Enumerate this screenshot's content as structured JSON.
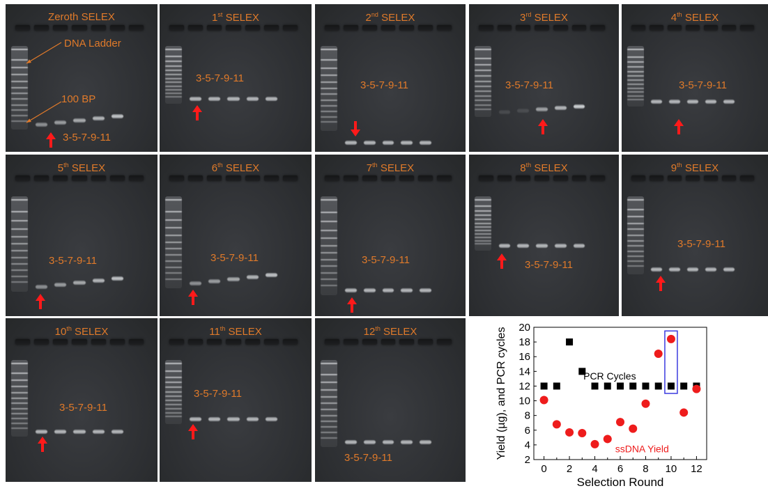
{
  "panels": [
    {
      "title": "Zeroth SELEX",
      "sup": "",
      "label": "3-5-7-9-11",
      "arrow": "up"
    },
    {
      "title": "1",
      "sup": "st",
      "suffix": " SELEX",
      "label": "3-5-7-9-11",
      "arrow": "up"
    },
    {
      "title": "2",
      "sup": "nd",
      "suffix": " SELEX",
      "label": "3-5-7-9-11",
      "arrow": "down"
    },
    {
      "title": "3",
      "sup": "rd",
      "suffix": " SELEX",
      "label": "3-5-7-9-11",
      "arrow": "up"
    },
    {
      "title": "4",
      "sup": "th",
      "suffix": " SELEX",
      "label": "3-5-7-9-11",
      "arrow": "up"
    },
    {
      "title": "5",
      "sup": "th",
      "suffix": " SELEX",
      "label": "3-5-7-9-11",
      "arrow": "up"
    },
    {
      "title": "6",
      "sup": "th",
      "suffix": " SELEX",
      "label": "3-5-7-9-11",
      "arrow": "up"
    },
    {
      "title": "7",
      "sup": "th",
      "suffix": " SELEX",
      "label": "3-5-7-9-11",
      "arrow": "up"
    },
    {
      "title": "8",
      "sup": "th",
      "suffix": " SELEX",
      "label": "3-5-7-9-11",
      "arrow": "up"
    },
    {
      "title": "9",
      "sup": "th",
      "suffix": " SELEX",
      "label": "3-5-7-9-11",
      "arrow": "up"
    },
    {
      "title": "10",
      "sup": "th",
      "suffix": " SELEX",
      "label": "3-5-7-9-11",
      "arrow": "up"
    },
    {
      "title": "11",
      "sup": "th",
      "suffix": " SELEX",
      "label": "3-5-7-9-11",
      "arrow": "up"
    },
    {
      "title": "12",
      "sup": "th",
      "suffix": " SELEX",
      "label": "3-5-7-9-11",
      "arrow": "none"
    }
  ],
  "annotations": {
    "dna_ladder": "DNA Ladder",
    "bp_100": "100 BP"
  },
  "colors": {
    "annotation": "#e07a2a",
    "arrow": "#ff1a1a",
    "pcr_marker": "#000000",
    "yield_marker": "#ee1c1c",
    "highlight_box": "#3a3adf"
  },
  "chart_data": {
    "type": "scatter",
    "xlabel": "Selection Round",
    "ylabel": "Yield (µg), and PCR cycles",
    "xlim": [
      -0.8,
      12.8
    ],
    "ylim": [
      2,
      20
    ],
    "xticks": [
      0,
      2,
      4,
      6,
      8,
      10,
      12
    ],
    "yticks": [
      2,
      4,
      6,
      8,
      10,
      12,
      14,
      16,
      18,
      20
    ],
    "series": [
      {
        "name": "PCR Cycles",
        "marker": "square",
        "x": [
          0,
          1,
          2,
          3,
          4,
          5,
          6,
          7,
          8,
          9,
          10,
          11,
          12
        ],
        "y": [
          12,
          12,
          18,
          14,
          12,
          12,
          12,
          12,
          12,
          12,
          12,
          12,
          12
        ]
      },
      {
        "name": "ssDNA Yield",
        "marker": "circle",
        "x": [
          0,
          1,
          2,
          3,
          4,
          5,
          6,
          7,
          8,
          9,
          10,
          11,
          12
        ],
        "y": [
          10.1,
          6.8,
          5.7,
          5.6,
          4.1,
          4.8,
          7.1,
          6.2,
          9.6,
          16.4,
          18.4,
          8.4,
          11.6
        ]
      }
    ],
    "highlight": {
      "x": 10,
      "y_range": [
        11,
        19.5
      ]
    },
    "legend": "inline"
  }
}
